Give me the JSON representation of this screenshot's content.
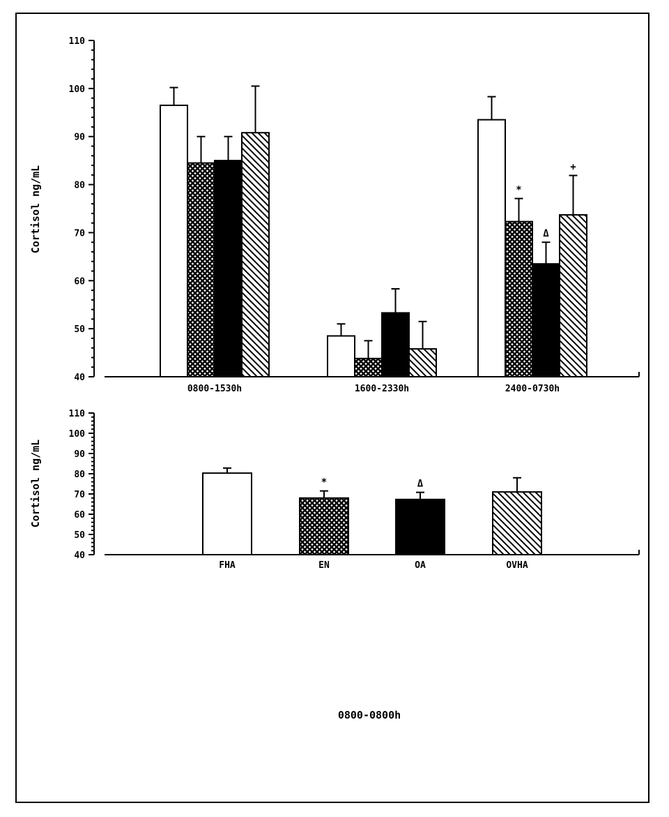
{
  "chart_data": [
    {
      "type": "bar",
      "panel": "top",
      "ylabel": "Cortisol ng/mL",
      "ylim": [
        40,
        110
      ],
      "yticks": [
        "40",
        "50",
        "60",
        "70",
        "80",
        "90",
        "100",
        "110"
      ],
      "categories": [
        "0800-1530h",
        "1600-2330h",
        "2400-0730h"
      ],
      "series": [
        {
          "name": "FHA",
          "pattern": "open",
          "values": [
            96.5,
            48.5,
            93.5
          ],
          "errors": [
            3.7,
            2.5,
            4.8
          ]
        },
        {
          "name": "EN",
          "pattern": "crosshatch",
          "values": [
            84.5,
            43.8,
            72.3
          ],
          "errors": [
            5.5,
            3.7,
            4.8
          ]
        },
        {
          "name": "OA",
          "pattern": "solid",
          "values": [
            85.0,
            53.3,
            63.5
          ],
          "errors": [
            5.0,
            5.0,
            4.5
          ]
        },
        {
          "name": "OVHA",
          "pattern": "diagonal",
          "values": [
            90.8,
            45.8,
            73.7
          ],
          "errors": [
            9.7,
            5.7,
            8.2
          ]
        }
      ],
      "annotations": [
        {
          "category": "2400-0730h",
          "series": "EN",
          "symbol": "*"
        },
        {
          "category": "2400-0730h",
          "series": "OA",
          "symbol": "Δ"
        },
        {
          "category": "2400-0730h",
          "series": "OVHA",
          "symbol": "+"
        }
      ]
    },
    {
      "type": "bar",
      "panel": "bottom",
      "ylabel": "Cortisol ng/mL",
      "xlabel": "0800-0800h",
      "ylim": [
        40,
        110
      ],
      "yticks": [
        "40",
        "50",
        "60",
        "70",
        "80",
        "90",
        "100",
        "110"
      ],
      "categories": [
        "FHA",
        "EN",
        "OA",
        "OVHA"
      ],
      "series": [
        {
          "name": "Cortisol",
          "values": [
            80.3,
            68.0,
            67.3,
            71.0
          ],
          "errors": [
            2.5,
            3.5,
            3.5,
            7.0
          ],
          "patterns": [
            "open",
            "crosshatch",
            "solid",
            "diagonal"
          ]
        }
      ],
      "annotations": [
        {
          "category": "EN",
          "symbol": "*"
        },
        {
          "category": "OA",
          "symbol": "Δ"
        }
      ]
    }
  ]
}
